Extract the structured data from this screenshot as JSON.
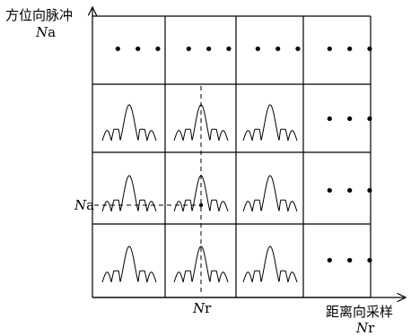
{
  "axes": {
    "y_label_line1": "方位向脉冲",
    "y_label_line2_italic": "N",
    "y_label_line2_rest": "a",
    "x_label_line1": "距离向采样",
    "x_label_line2_italic": "N",
    "x_label_line2_rest": "r"
  },
  "markers": {
    "na_italic": "N",
    "na_rest": "a",
    "nr_italic": "N",
    "nr_rest": "r"
  },
  "grid": {
    "rows": 4,
    "cols": 4,
    "ellipsis": "• • •"
  }
}
